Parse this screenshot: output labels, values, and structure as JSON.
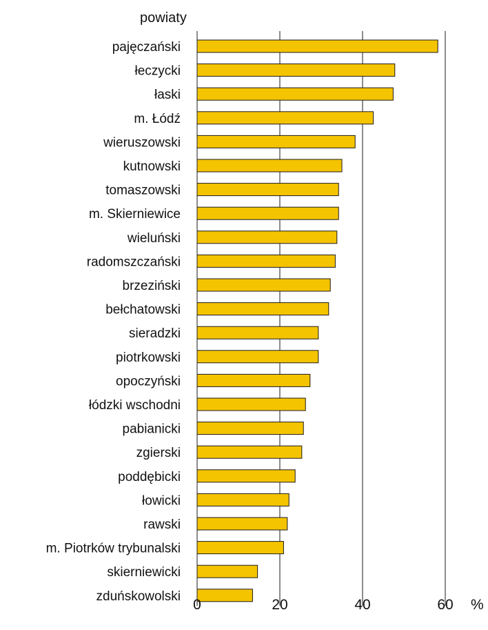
{
  "chart_data": {
    "type": "bar",
    "orientation": "horizontal",
    "ylabel": "powiaty",
    "xunit": "%",
    "xlim": [
      0,
      60
    ],
    "xticks": [
      0,
      20,
      40,
      60
    ],
    "grid": true,
    "bar_color": "#f5c400",
    "categories": [
      "pajęczański",
      "łeczycki",
      "łaski",
      "m. Łódź",
      "wieruszowski",
      "kutnowski",
      "tomaszowski",
      "m. Skierniewice",
      "wieluński",
      "radomszczański",
      "brzeziński",
      "bełchatowski",
      "sieradzki",
      "piotrkowski",
      "opoczyński",
      "łódzki wschodni",
      "pabianicki",
      "zgierski",
      "poddębicki",
      "łowicki",
      "rawski",
      "m. Piotrków trybunalski",
      "skierniewicki",
      "zduńskowolski"
    ],
    "values": [
      58.2,
      47.8,
      47.4,
      42.6,
      38.2,
      35.0,
      34.2,
      34.2,
      33.8,
      33.4,
      32.2,
      31.8,
      29.3,
      29.3,
      27.3,
      26.2,
      25.7,
      25.3,
      23.7,
      22.2,
      21.8,
      20.9,
      14.6,
      13.4
    ]
  }
}
